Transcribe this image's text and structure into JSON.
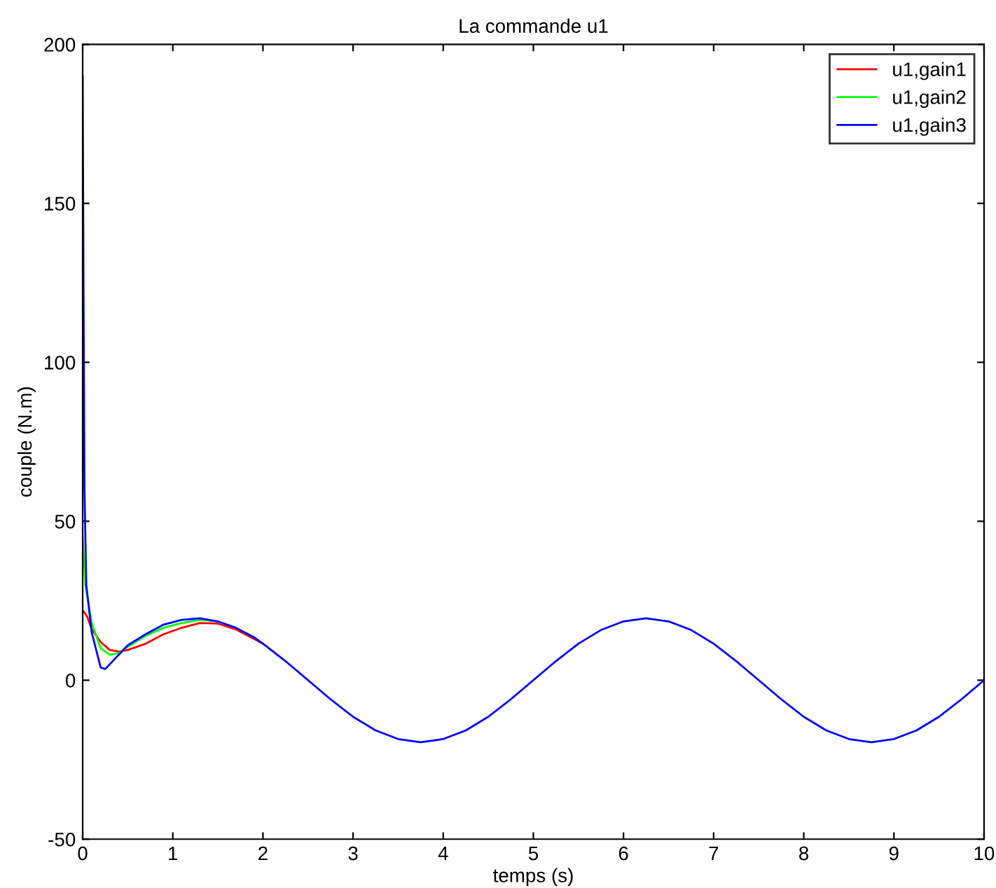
{
  "chart_data": {
    "type": "line",
    "title": "La commande u1",
    "xlabel": "temps (s)",
    "ylabel": "couple (N.m)",
    "xlim": [
      0,
      10
    ],
    "ylim": [
      -50,
      200
    ],
    "xticks": [
      0,
      1,
      2,
      3,
      4,
      5,
      6,
      7,
      8,
      9,
      10
    ],
    "yticks": [
      -50,
      0,
      50,
      100,
      150,
      200
    ],
    "grid": false,
    "legend": "top right",
    "line_style": "solid",
    "marker": "none",
    "series": [
      {
        "name": "u1,gain1",
        "color": "#ff0000",
        "x": [
          0,
          0.05,
          0.1,
          0.2,
          0.3,
          0.4,
          0.5,
          0.7,
          0.9,
          1.1,
          1.3,
          1.5,
          1.7,
          1.9,
          2
        ],
        "values": [
          22,
          20,
          16,
          12,
          9.5,
          9,
          9.5,
          11.5,
          14.5,
          16.5,
          18,
          17.8,
          16,
          13,
          11.5
        ]
      },
      {
        "name": "u1,gain2",
        "color": "#00ff00",
        "x": [
          0,
          0.03,
          0.1,
          0.2,
          0.3,
          0.4,
          0.5,
          0.7,
          0.9,
          1.1,
          1.3,
          1.5
        ],
        "values": [
          45,
          30,
          18,
          10,
          8,
          8.5,
          10.5,
          14,
          16.5,
          18,
          19,
          18.5
        ]
      },
      {
        "name": "u1,gain3",
        "color": "#0000ff",
        "x": [
          0,
          0.01,
          0.02,
          0.04,
          0.1,
          0.2,
          0.25,
          0.4,
          0.5,
          0.7,
          0.9,
          1.1,
          1.3,
          1.5,
          1.7,
          1.9,
          2,
          2.25,
          2.5,
          2.75,
          3,
          3.25,
          3.5,
          3.75,
          4,
          4.25,
          4.5,
          4.75,
          5,
          5.25,
          5.5,
          5.75,
          6,
          6.25,
          6.5,
          6.75,
          7,
          7.25,
          7.5,
          7.75,
          8,
          8.25,
          8.5,
          8.75,
          9,
          9.25,
          9.5,
          9.75,
          10
        ],
        "values": [
          190,
          120,
          60,
          30,
          15,
          4,
          3.5,
          8,
          11,
          14.5,
          17.5,
          19,
          19.5,
          18.5,
          16.5,
          13.5,
          11.5,
          6,
          0,
          -6,
          -11.5,
          -15.8,
          -18.5,
          -19.5,
          -18.5,
          -15.8,
          -11.5,
          -6,
          0,
          6,
          11.5,
          15.8,
          18.5,
          19.5,
          18.5,
          15.8,
          11.5,
          6,
          0,
          -6,
          -11.5,
          -15.8,
          -18.5,
          -19.5,
          -18.5,
          -15.8,
          -11.5,
          -6,
          0
        ]
      }
    ]
  }
}
